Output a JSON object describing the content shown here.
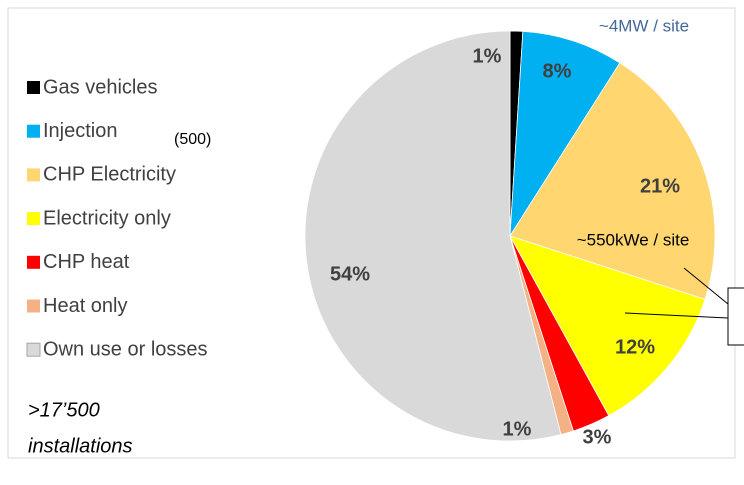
{
  "chart_data": {
    "type": "pie",
    "categories": [
      "Gas vehicles",
      "Injection",
      "CHP Electricity",
      "Electricity only",
      "CHP heat",
      "Heat only",
      "Own use or losses"
    ],
    "values": [
      1,
      8,
      21,
      12,
      3,
      1,
      54
    ],
    "value_labels": [
      "1%",
      "8%",
      "21%",
      "12%",
      "3%",
      "1%",
      "54%"
    ],
    "colors": [
      "#000000",
      "#00b0f0",
      "#ffd670",
      "#ffff00",
      "#ff0000",
      "#f4b183",
      "#d9d9d9"
    ],
    "legend": "left",
    "annotations": [
      "~4MW / site",
      "(500)",
      "~550kWe / site",
      ">17’500",
      "installations"
    ]
  }
}
